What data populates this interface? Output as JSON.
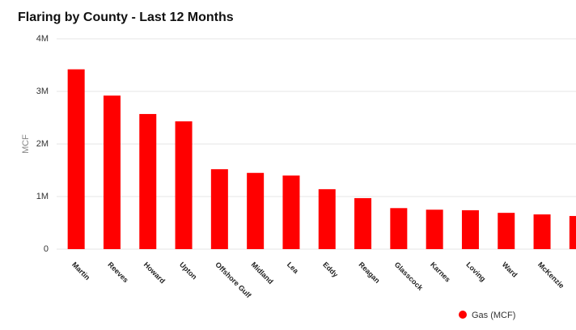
{
  "chart_data": {
    "type": "bar",
    "title": "Flaring by County - Last 12 Months",
    "y_label": "MCF",
    "categories": [
      "Martin",
      "Reeves",
      "Howard",
      "Upton",
      "Offshore Gulf",
      "Midland",
      "Lea",
      "Eddy",
      "Reagan",
      "Glasscock",
      "Karnes",
      "Loving",
      "Ward",
      "McKenzie",
      null
    ],
    "series": [
      {
        "name": "Gas (MCF)",
        "color": "#ff0000",
        "values": [
          3420000,
          2920000,
          2570000,
          2430000,
          1520000,
          1450000,
          1400000,
          1140000,
          970000,
          780000,
          750000,
          740000,
          690000,
          660000,
          630000
        ]
      }
    ],
    "ylim": [
      0,
      4000000
    ],
    "yticks": [
      0,
      {
        "value": 1000000,
        "label": "1M"
      },
      {
        "value": 2000000,
        "label": "2M"
      },
      {
        "value": 3000000,
        "label": "3M"
      },
      {
        "value": 4000000,
        "label": "4M"
      }
    ],
    "grid": true,
    "legend": "bottom"
  }
}
